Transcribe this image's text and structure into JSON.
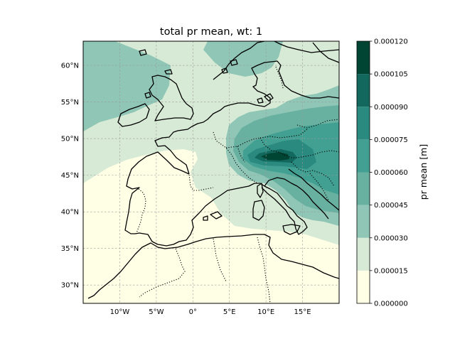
{
  "chart_data": {
    "type": "map",
    "title": "total pr mean, wt: 1",
    "extent": {
      "lon": [
        -15,
        20
      ],
      "lat": [
        27.5,
        63.3
      ]
    },
    "lon_ticks": [
      {
        "value": -10,
        "label": "10°W"
      },
      {
        "value": -5,
        "label": "5°W"
      },
      {
        "value": 0,
        "label": "0°"
      },
      {
        "value": 5,
        "label": "5°E"
      },
      {
        "value": 10,
        "label": "10°E"
      },
      {
        "value": 15,
        "label": "15°E"
      }
    ],
    "lat_ticks": [
      {
        "value": 30,
        "label": "30°N"
      },
      {
        "value": 35,
        "label": "35°N"
      },
      {
        "value": 40,
        "label": "40°N"
      },
      {
        "value": 45,
        "label": "45°N"
      },
      {
        "value": 50,
        "label": "50°N"
      },
      {
        "value": 55,
        "label": "55°N"
      },
      {
        "value": 60,
        "label": "60°N"
      }
    ],
    "grid": true,
    "colorbar": {
      "label": "pr mean [m]",
      "levels": [
        0.0,
        1.5e-05,
        3e-05,
        4.5e-05,
        6e-05,
        7.5e-05,
        9e-05,
        0.000105,
        0.00012
      ],
      "tick_labels": [
        "0.000000",
        "0.000015",
        "0.000030",
        "0.000045",
        "0.000060",
        "0.000075",
        "0.000090",
        "0.000105",
        "0.000120"
      ],
      "colors": [
        "#ffffe5",
        "#d7ead5",
        "#8fc6b6",
        "#68b1a1",
        "#41a092",
        "#2a8a7f",
        "#12685d",
        "#004533"
      ]
    },
    "colormap": "BuGn-like (yellow-green-teal)",
    "max_region": "Alps, about 10–14°E, 46–48°N"
  }
}
